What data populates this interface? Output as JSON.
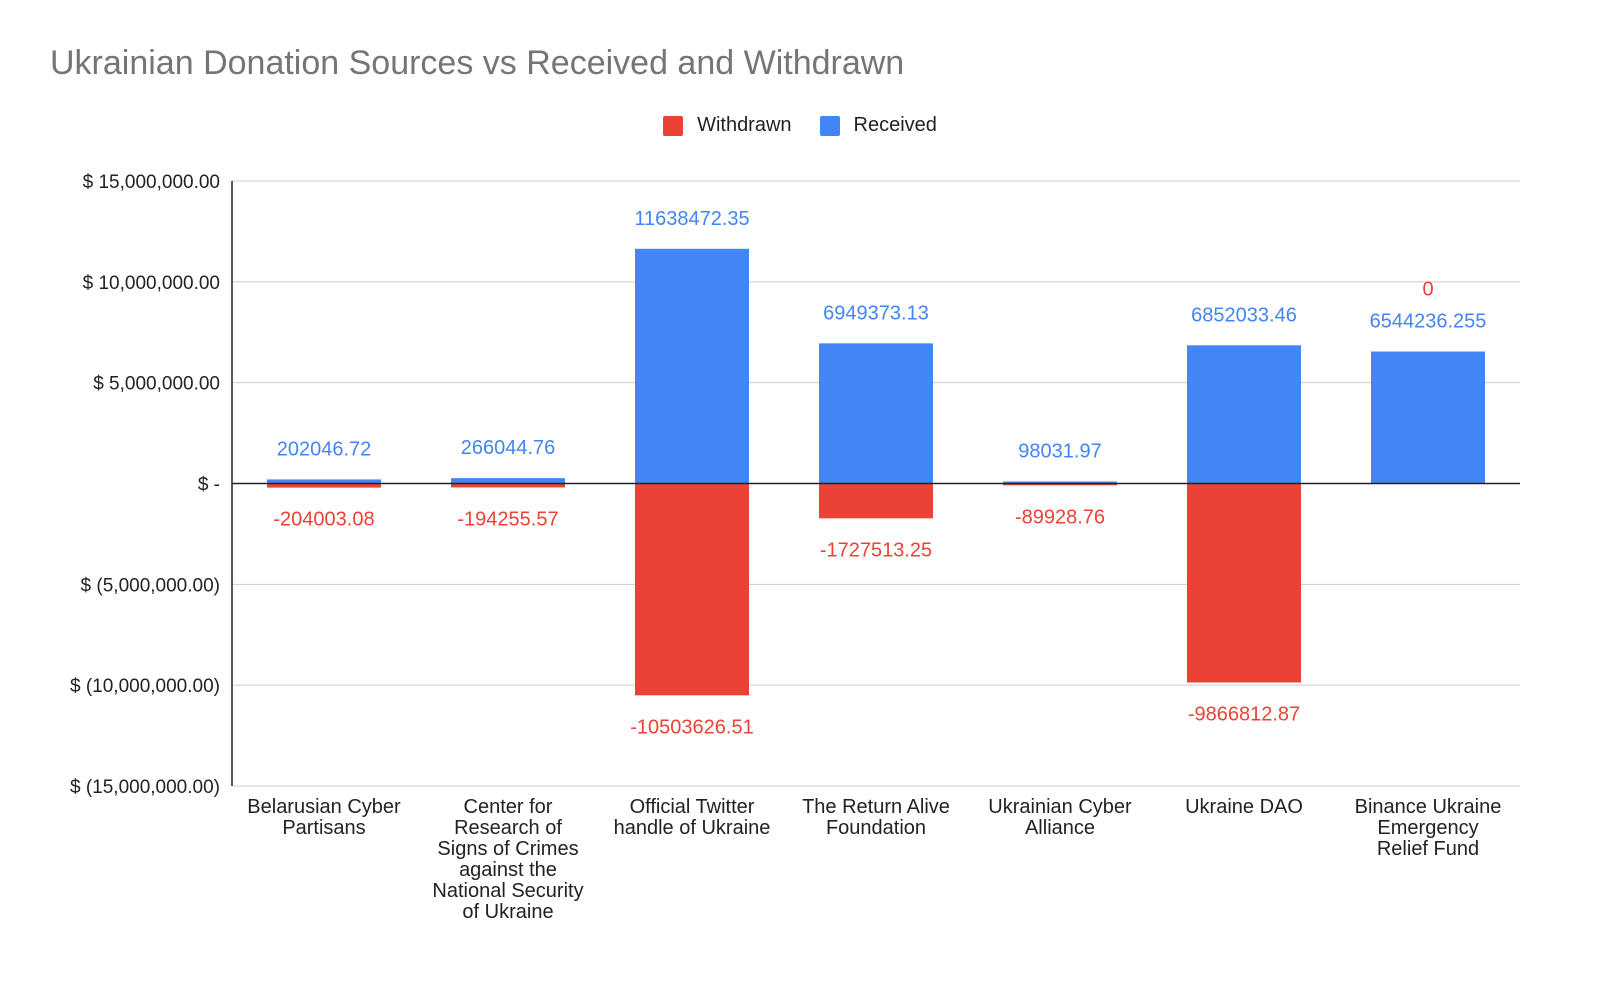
{
  "chart_data": {
    "type": "bar",
    "title": "Ukrainian Donation Sources vs Received and Withdrawn",
    "xlabel": "",
    "ylabel": "",
    "stacked": true,
    "ylim": [
      -15000000,
      15000000
    ],
    "yticks": [
      15000000,
      10000000,
      5000000,
      0,
      -5000000,
      -10000000,
      -15000000
    ],
    "ytick_labels": [
      "$ 15,000,000.00",
      "$ 10,000,000.00",
      "$ 5,000,000.00",
      "$ -",
      "$ (5,000,000.00)",
      "$ (10,000,000.00)",
      "$ (15,000,000.00)"
    ],
    "grid": true,
    "legend_position": "top",
    "categories": [
      [
        "Belarusian Cyber",
        "Partisans"
      ],
      [
        "Center for",
        "Research of",
        "Signs of Crimes",
        "against the",
        "National Security",
        "of Ukraine"
      ],
      [
        "Official Twitter",
        "handle of Ukraine"
      ],
      [
        "The Return Alive",
        "Foundation"
      ],
      [
        "Ukrainian Cyber",
        "Alliance"
      ],
      [
        "Ukraine DAO"
      ],
      [
        "Binance Ukraine",
        "Emergency",
        "Relief Fund"
      ]
    ],
    "series": [
      {
        "name": "Withdrawn",
        "color": "#ea4335",
        "values": [
          -204003.08,
          -194255.57,
          -10503626.51,
          -1727513.25,
          -89928.76,
          -9866812.87,
          0
        ],
        "labels": [
          "-204003.08",
          "-194255.57",
          "-10503626.51",
          "-1727513.25",
          "-89928.76",
          "-9866812.87",
          "0"
        ]
      },
      {
        "name": "Received",
        "color": "#4285f4",
        "values": [
          202046.72,
          266044.76,
          11638472.35,
          6949373.13,
          98031.97,
          6852033.46,
          6544236.255
        ],
        "labels": [
          "202046.72",
          "266044.76",
          "11638472.35",
          "6949373.13",
          "98031.97",
          "6852033.46",
          "6544236.255"
        ]
      }
    ]
  }
}
